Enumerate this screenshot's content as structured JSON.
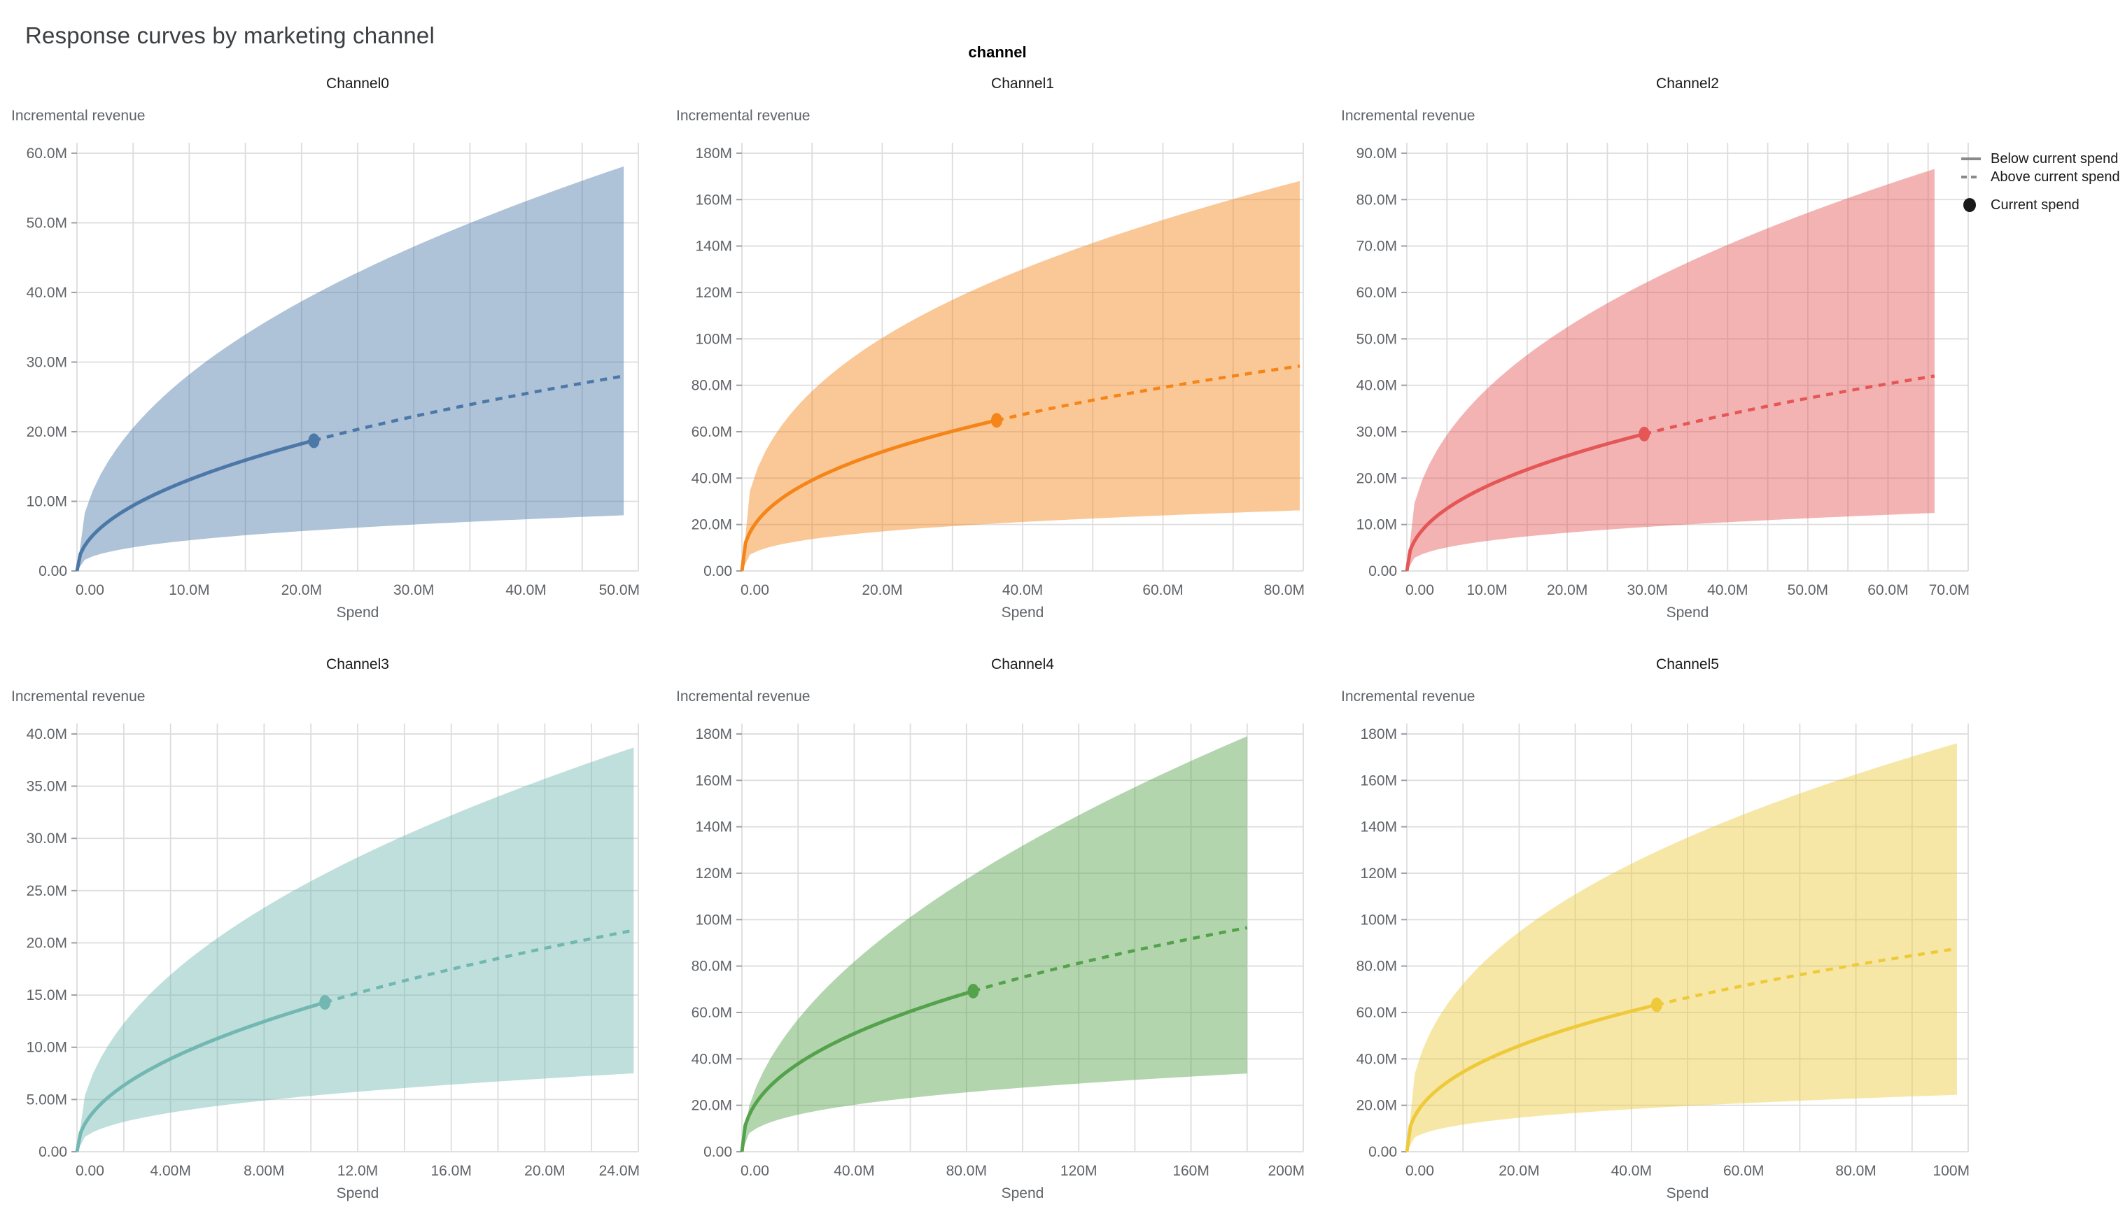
{
  "header": {
    "title": "Response curves by marketing channel",
    "facet_label": "channel"
  },
  "legend": {
    "line_swatch_color": "#8a8a8a",
    "dot_swatch_color": "#1a1a1a",
    "items": [
      {
        "label": "Below current spend",
        "swatch": "solid-line"
      },
      {
        "label": "Above current spend",
        "swatch": "dashed-line"
      },
      {
        "label": "Current spend",
        "swatch": "filled-circle"
      }
    ]
  },
  "chart_data": {
    "type": "line",
    "subtype": "response-curves-with-credible-interval-band",
    "units": "all spend and revenue values in millions (M)",
    "x_axis_title": "Spend",
    "y_axis_title": "Incremental revenue",
    "grid": true,
    "legend_position": "top-right",
    "style": {
      "grid_color": "#dddddd",
      "tick_label_color": "#5f6368",
      "axis_title_color": "#5f6368",
      "subplot_title_color": "#1a1a1a",
      "band_opacity": 0.45
    },
    "channels": [
      {
        "title": "Channel0",
        "color": "#4c78a8",
        "x_max": 50,
        "x_minor_step": 5,
        "x_ticks": [
          0,
          10,
          20,
          30,
          40,
          50
        ],
        "x_tick_labels": [
          "0.00",
          "10.0M",
          "20.0M",
          "30.0M",
          "40.0M",
          "50.0M"
        ],
        "y_max": 60,
        "y_ticks": [
          0,
          10,
          20,
          30,
          40,
          50,
          60
        ],
        "y_tick_labels": [
          "0.00",
          "10.0M",
          "20.0M",
          "30.0M",
          "40.0M",
          "50.0M",
          "60.0M"
        ],
        "current_spend": {
          "spend": 21.1,
          "incremental_revenue": 18.7
        },
        "curve_end_spend": 48.7,
        "mean_at_end": 28.0,
        "ci_upper_at_end": 58.1,
        "ci_lower_at_end": 8.0,
        "shape_exponent_mean": 0.48,
        "shape_exponent_upper": 0.456,
        "shape_exponent_lower": 0.377
      },
      {
        "title": "Channel1",
        "color": "#f58518",
        "x_max": 80,
        "x_minor_step": 10,
        "x_ticks": [
          0,
          20,
          40,
          60,
          80
        ],
        "x_tick_labels": [
          "0.00",
          "20.0M",
          "40.0M",
          "60.0M",
          "80.0M"
        ],
        "y_max": 180,
        "y_ticks": [
          0,
          20,
          40,
          60,
          80,
          100,
          120,
          140,
          160,
          180
        ],
        "y_tick_labels": [
          "0.00",
          "20.0M",
          "40.0M",
          "60.0M",
          "80.0M",
          "100M",
          "120M",
          "140M",
          "160M",
          "180M"
        ],
        "current_spend": {
          "spend": 36.3,
          "incremental_revenue": 64.9
        },
        "curve_end_spend": 79.5,
        "mean_at_end": 88.3,
        "ci_upper_at_end": 168.0,
        "ci_lower_at_end": 26.1,
        "shape_exponent_mean": 0.393,
        "shape_exponent_upper": 0.373,
        "shape_exponent_lower": 0.31
      },
      {
        "title": "Channel2",
        "color": "#e45756",
        "x_max": 70,
        "x_minor_step": 5,
        "x_ticks": [
          0,
          10,
          20,
          30,
          40,
          50,
          60,
          70
        ],
        "x_tick_labels": [
          "0.00",
          "10.0M",
          "20.0M",
          "30.0M",
          "40.0M",
          "50.0M",
          "60.0M",
          "70.0M"
        ],
        "y_max": 90,
        "y_ticks": [
          0,
          10,
          20,
          30,
          40,
          50,
          60,
          70,
          80,
          90
        ],
        "y_tick_labels": [
          "0.00",
          "10.0M",
          "20.0M",
          "30.0M",
          "40.0M",
          "50.0M",
          "60.0M",
          "70.0M",
          "80.0M",
          "90.0M"
        ],
        "current_spend": {
          "spend": 29.6,
          "incremental_revenue": 29.5
        },
        "curve_end_spend": 65.8,
        "mean_at_end": 42.0,
        "ci_upper_at_end": 86.6,
        "ci_lower_at_end": 12.5,
        "shape_exponent_mean": 0.442,
        "shape_exponent_upper": 0.42,
        "shape_exponent_lower": 0.35
      },
      {
        "title": "Channel3",
        "color": "#72b7b2",
        "x_max": 24,
        "x_minor_step": 2,
        "x_ticks": [
          0,
          4,
          8,
          12,
          16,
          20,
          24
        ],
        "x_tick_labels": [
          "0.00",
          "4.00M",
          "8.00M",
          "12.0M",
          "16.0M",
          "20.0M",
          "24.0M"
        ],
        "y_max": 40,
        "y_ticks": [
          0,
          5,
          10,
          15,
          20,
          25,
          30,
          35,
          40
        ],
        "y_tick_labels": [
          "0.00",
          "5.00M",
          "10.0M",
          "15.0M",
          "20.0M",
          "25.0M",
          "30.0M",
          "35.0M",
          "40.0M"
        ],
        "current_spend": {
          "spend": 10.6,
          "incremental_revenue": 14.3
        },
        "curve_end_spend": 23.8,
        "mean_at_end": 21.2,
        "ci_upper_at_end": 38.7,
        "ci_lower_at_end": 7.5,
        "shape_exponent_mean": 0.487,
        "shape_exponent_upper": 0.463,
        "shape_exponent_lower": 0.39
      },
      {
        "title": "Channel4",
        "color": "#54a24b",
        "x_max": 200,
        "x_minor_step": 20,
        "x_ticks": [
          0,
          40,
          80,
          120,
          160,
          200
        ],
        "x_tick_labels": [
          "0.00",
          "40.0M",
          "80.0M",
          "120M",
          "160M",
          "200M"
        ],
        "y_max": 180,
        "y_ticks": [
          0,
          20,
          40,
          60,
          80,
          100,
          120,
          140,
          160,
          180
        ],
        "y_tick_labels": [
          "0.00",
          "20.0M",
          "40.0M",
          "60.0M",
          "80.0M",
          "100M",
          "120M",
          "140M",
          "160M",
          "180M"
        ],
        "current_spend": {
          "spend": 82.4,
          "incremental_revenue": 69.2
        },
        "curve_end_spend": 180.0,
        "mean_at_end": 96.5,
        "ci_upper_at_end": 179.0,
        "ci_lower_at_end": 33.7,
        "shape_exponent_mean": 0.4255,
        "shape_exponent_upper": 0.52,
        "shape_exponent_lower": 0.34
      },
      {
        "title": "Channel5",
        "color": "#eeca3b",
        "x_max": 100,
        "x_minor_step": 10,
        "x_ticks": [
          0,
          20,
          40,
          60,
          80,
          100
        ],
        "x_tick_labels": [
          "0.00",
          "20.0M",
          "40.0M",
          "60.0M",
          "80.0M",
          "100M"
        ],
        "y_max": 180,
        "y_ticks": [
          0,
          20,
          40,
          60,
          80,
          100,
          120,
          140,
          160,
          180
        ],
        "y_tick_labels": [
          "0.00",
          "20.0M",
          "40.0M",
          "60.0M",
          "80.0M",
          "100M",
          "120M",
          "140M",
          "160M",
          "180M"
        ],
        "current_spend": {
          "spend": 44.5,
          "incremental_revenue": 63.3
        },
        "curve_end_spend": 98.0,
        "mean_at_end": 87.5,
        "ci_upper_at_end": 176.0,
        "ci_lower_at_end": 24.5,
        "shape_exponent_mean": 0.41,
        "shape_exponent_upper": 0.39,
        "shape_exponent_lower": 0.324
      }
    ]
  }
}
